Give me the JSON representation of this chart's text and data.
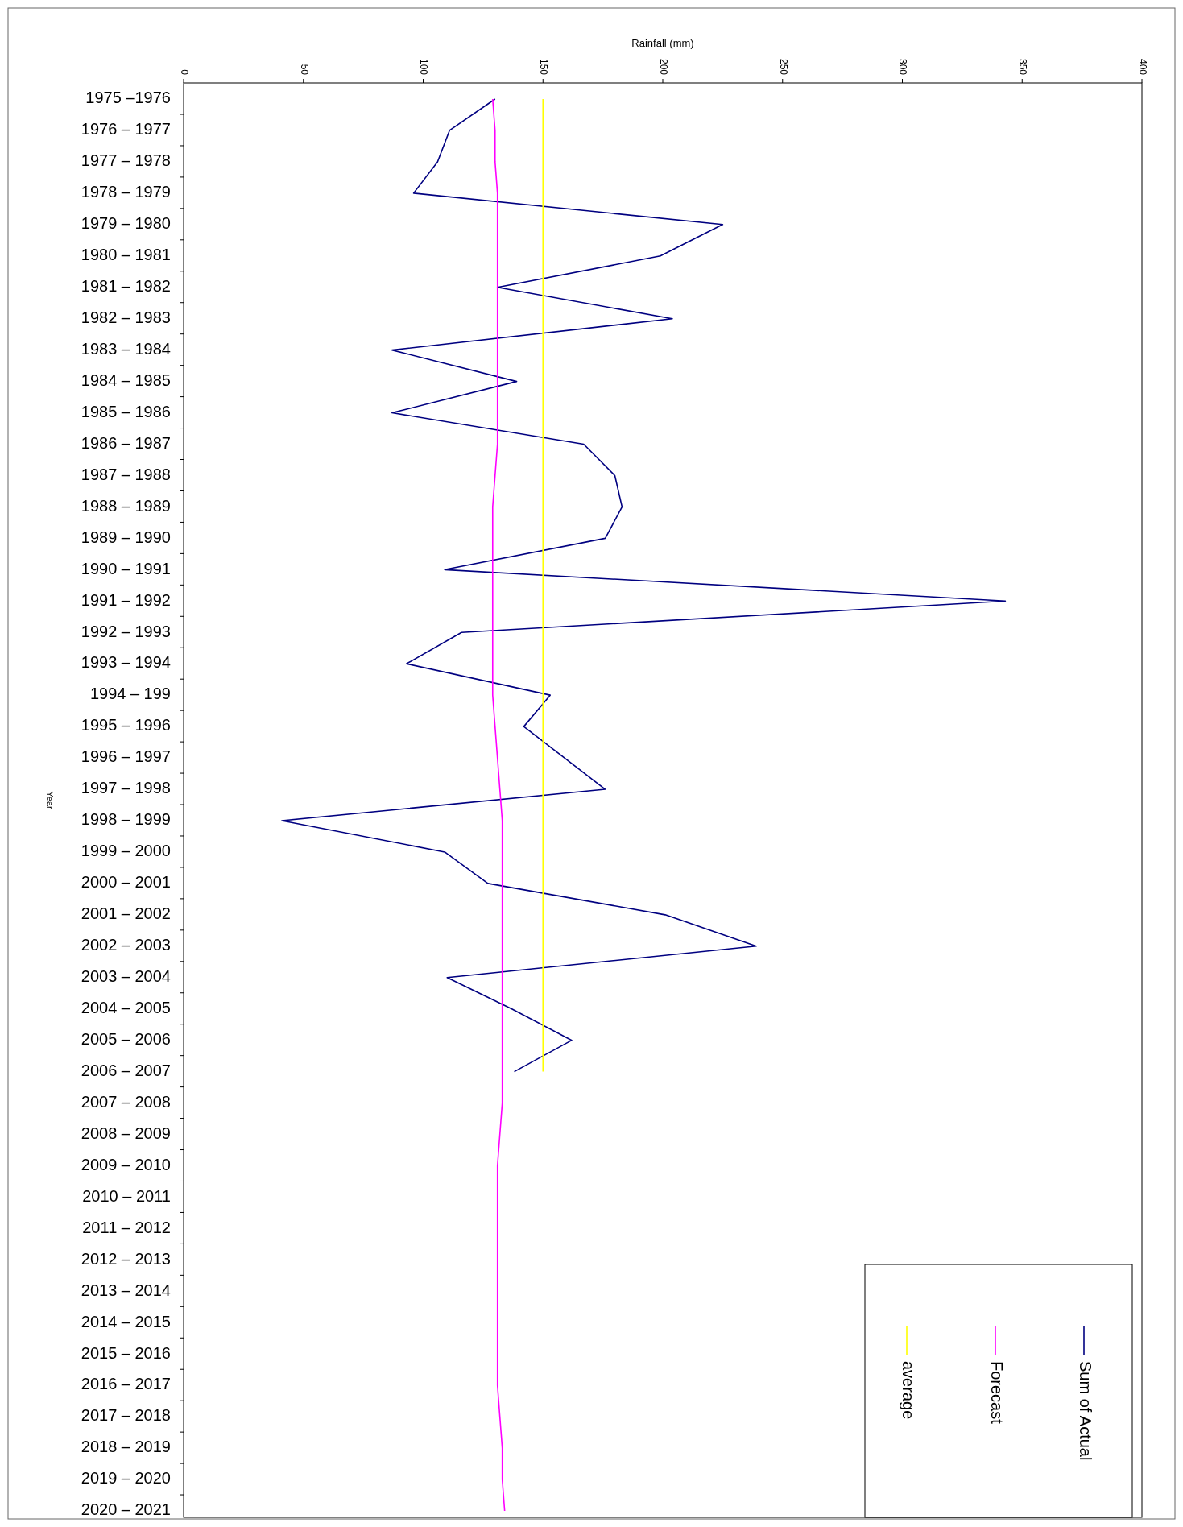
{
  "chart_data": {
    "type": "line",
    "orientation": "horizontal",
    "xlabel": "Rainfall (mm)",
    "ylabel": "Year",
    "categories": [
      "1975 –1976",
      "1976 – 1977",
      "1977 – 1978",
      "1978 – 1979",
      "1979 – 1980",
      "1980 – 1981",
      "1981 – 1982",
      "1982 – 1983",
      "1983 – 1984",
      "1984 – 1985",
      "1985 – 1986",
      "1986 – 1987",
      "1987 – 1988",
      "1988 – 1989",
      "1989 – 1990",
      "1990 – 1991",
      "1991 – 1992",
      "1992 – 1993",
      "1993 – 1994",
      "1994 – 199",
      "1995 – 1996",
      "1996 – 1997",
      "1997 – 1998",
      "1998 – 1999",
      "1999 – 2000",
      "2000 – 2001",
      "2001 – 2002",
      "2002 – 2003",
      "2003 – 2004",
      "2004 – 2005",
      "2005 – 2006",
      "2006 – 2007",
      "2007 – 2008",
      "2008 – 2009",
      "2009 – 2010",
      "2010 – 2011",
      "2011 – 2012",
      "2012 – 2013",
      "2013 – 2014",
      "2014 – 2015",
      "2015 – 2016",
      "2016 – 2017",
      "2017 – 2018",
      "2018 – 2019",
      "2019 – 2020",
      "2020 – 2021"
    ],
    "series": [
      {
        "name": "Sum of Actual",
        "color": "#000080",
        "values": [
          130,
          111,
          106,
          96,
          225,
          199,
          131,
          204,
          87,
          139,
          87,
          167,
          180,
          183,
          176,
          109,
          343,
          116,
          93,
          153,
          142,
          159,
          176,
          41,
          109,
          127,
          201,
          239,
          110,
          137,
          162,
          138,
          null,
          null,
          null,
          null,
          null,
          null,
          null,
          null,
          null,
          null,
          null,
          null,
          null,
          null
        ]
      },
      {
        "name": "Forecast",
        "color": "#ff00ff",
        "values": [
          129,
          130,
          130,
          131,
          131,
          131,
          131,
          131,
          131,
          131,
          131,
          131,
          130,
          129,
          129,
          129,
          129,
          129,
          129,
          129,
          130,
          131,
          132,
          133,
          133,
          133,
          133,
          133,
          133,
          133,
          133,
          133,
          133,
          132,
          131,
          131,
          131,
          131,
          131,
          131,
          131,
          131,
          132,
          133,
          133,
          134
        ]
      },
      {
        "name": "average",
        "color": "#ffff00",
        "values": [
          150,
          150,
          150,
          150,
          150,
          150,
          150,
          150,
          150,
          150,
          150,
          150,
          150,
          150,
          150,
          150,
          150,
          150,
          150,
          150,
          150,
          150,
          150,
          150,
          150,
          150,
          150,
          150,
          150,
          150,
          150,
          150,
          null,
          null,
          null,
          null,
          null,
          null,
          null,
          null,
          null,
          null,
          null,
          null,
          null,
          null
        ]
      }
    ],
    "xlim": [
      0,
      400
    ],
    "xticks": [
      0,
      50,
      100,
      150,
      200,
      250,
      300,
      350,
      400
    ],
    "grid": false,
    "legend": "bottom right",
    "marker": "none",
    "line_style": "solid"
  }
}
